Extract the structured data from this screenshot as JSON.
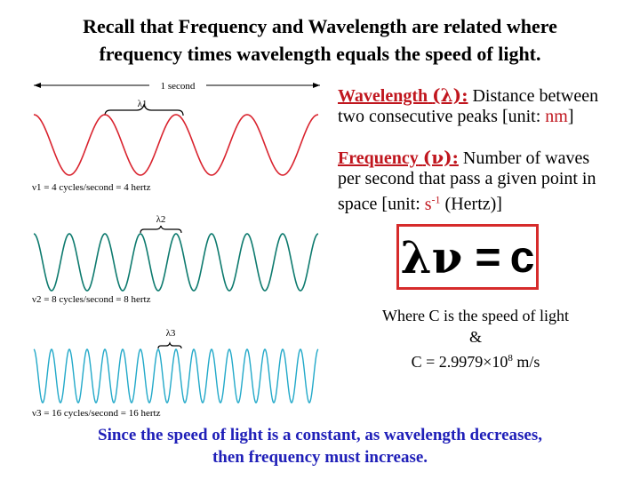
{
  "title": {
    "line1": "Recall that Frequency and Wavelength are related where",
    "line2": "frequency times wavelength equals the speed of light."
  },
  "figure": {
    "time_label": "1 second",
    "waves": [
      {
        "lambda_label": "λ1",
        "freq_label": "ν1 = 4 cycles/second = 4 hertz",
        "cycles": 4,
        "color": "#d9232e"
      },
      {
        "lambda_label": "λ2",
        "freq_label": "ν2 = 8 cycles/second = 8 hertz",
        "cycles": 8,
        "color": "#0d7a6e"
      },
      {
        "lambda_label": "λ3",
        "freq_label": "ν3 = 16 cycles/second = 16 hertz",
        "cycles": 16,
        "color": "#22a9c9"
      }
    ]
  },
  "wavelength_def": {
    "term": "Wavelength",
    "symbol": "(λ):",
    "text_line1": " Distance between",
    "text_line2": "two consecutive peaks [unit: ",
    "unit": "nm",
    "close": "]"
  },
  "frequency_def": {
    "term": "Frequency",
    "symbol": "(ν):",
    "text_line1": " Number of waves",
    "text_line2": "per second that pass a given point in",
    "text_line3a": "space [unit: ",
    "unit": "s",
    "unit_sup": "-1",
    "text_line3b": " (Hertz)]"
  },
  "equation": {
    "lhs": "λν",
    "eq": "=",
    "rhs": "c"
  },
  "where": {
    "line1": "Where C is the speed of light",
    "line2": "&",
    "line3a": "C = 2.9979",
    "times": "×",
    "line3b": "10",
    "exp": "8",
    "line3c": " m/s"
  },
  "footer": {
    "line1": "Since the speed of light is a constant, as wavelength decreases,",
    "line2": "then frequency must increase."
  }
}
